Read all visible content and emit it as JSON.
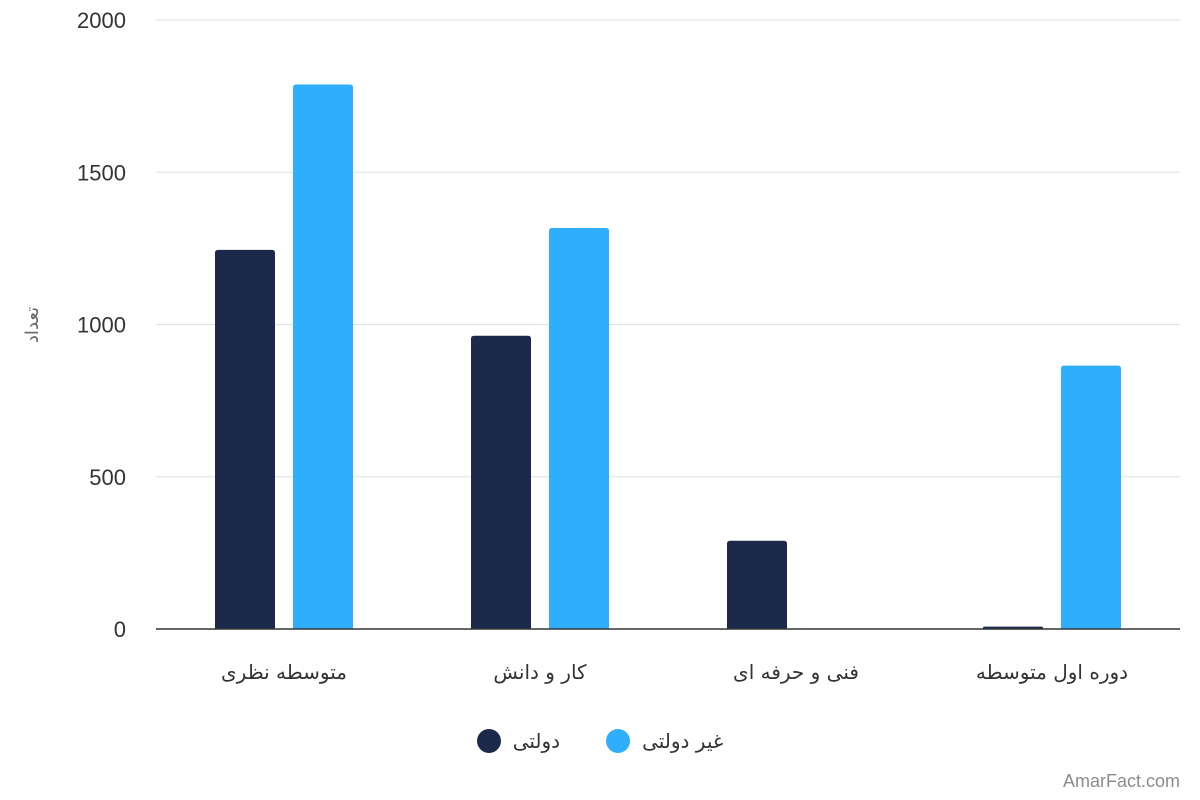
{
  "chart_data": {
    "type": "bar",
    "ylabel": "تعداد",
    "xlabel": "",
    "ylim": [
      0,
      2000
    ],
    "yticks": [
      0,
      500,
      1000,
      1500,
      2000
    ],
    "grid": true,
    "legend_position": "bottom-center",
    "categories": [
      "متوسطه نظری",
      "کار و دانش",
      "فنی و حرفه ای",
      "دوره اول متوسطه"
    ],
    "series": [
      {
        "name": "دولتی",
        "color": "#1b2a4a",
        "values": [
          1245,
          963,
          290,
          8
        ]
      },
      {
        "name": "غیر دولتی",
        "color": "#2eaefc",
        "values": [
          1788,
          1317,
          0,
          865
        ]
      }
    ]
  },
  "watermark": "AmarFact.com"
}
